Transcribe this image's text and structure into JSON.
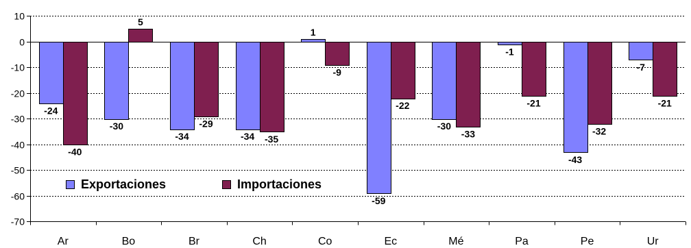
{
  "chart_data": {
    "type": "bar",
    "title": "",
    "xlabel": "",
    "ylabel": "",
    "categories": [
      "Ar",
      "Bo",
      "Br",
      "Ch",
      "Co",
      "Ec",
      "Mé",
      "Pa",
      "Pe",
      "Ur"
    ],
    "series": [
      {
        "name": "Exportaciones",
        "color": "#8080FF",
        "values": [
          -24,
          -30,
          -34,
          -34,
          1,
          -59,
          -30,
          -1,
          -43,
          -7
        ]
      },
      {
        "name": "Importaciones",
        "color": "#7F1F4F",
        "values": [
          -40,
          5,
          -29,
          -35,
          -9,
          -22,
          -33,
          -21,
          -32,
          -21
        ]
      }
    ],
    "ylim": [
      -70,
      10
    ],
    "yticks": [
      10,
      0,
      -10,
      -20,
      -30,
      -40,
      -50,
      -60,
      -70
    ],
    "grid": true,
    "legend_position": "bottom-left"
  }
}
